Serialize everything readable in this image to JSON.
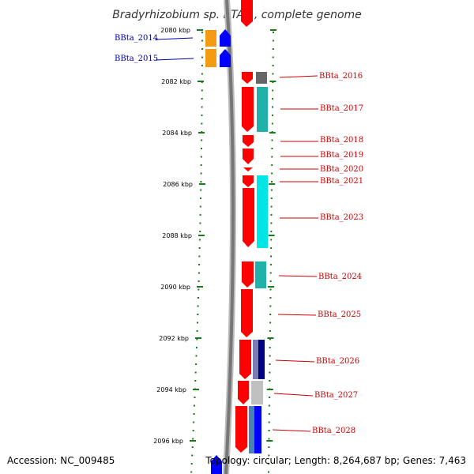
{
  "title": "Bradyrhizobium sp. BTAi1, complete genome",
  "footer": {
    "accession": "Accession: NC_009485",
    "topology": "Topology: circular; Length: 8,264,687 bp; Genes: 7,463"
  },
  "ticks": [
    {
      "kbp": 2080,
      "label": "2080 kbp"
    },
    {
      "kbp": 2082,
      "label": "2082 kbp"
    },
    {
      "kbp": 2084,
      "label": "2084 kbp"
    },
    {
      "kbp": 2086,
      "label": "2086 kbp"
    },
    {
      "kbp": 2088,
      "label": "2088 kbp"
    },
    {
      "kbp": 2090,
      "label": "2090 kbp"
    },
    {
      "kbp": 2092,
      "label": "2092 kbp"
    },
    {
      "kbp": 2094,
      "label": "2094 kbp"
    },
    {
      "kbp": 2096,
      "label": "2096 kbp"
    }
  ],
  "genes": [
    {
      "label": "BBta_2014",
      "strand": "left",
      "color": "#0000aa",
      "tracks": [
        "#f39c12",
        "#0000ff"
      ]
    },
    {
      "label": "BBta_2015",
      "strand": "left",
      "color": "#0000aa",
      "tracks": [
        "#f39c12",
        "#0000ff"
      ]
    },
    {
      "label": "BBta_2016",
      "strand": "right",
      "color": "#cc0000",
      "tracks": [
        "#ff0000",
        "#666666"
      ]
    },
    {
      "label": "BBta_2017",
      "strand": "right",
      "color": "#cc0000",
      "tracks": [
        "#ff0000",
        "#20b2aa"
      ]
    },
    {
      "label": "BBta_2018",
      "strand": "right",
      "color": "#cc0000",
      "tracks": [
        "#ff0000"
      ]
    },
    {
      "label": "BBta_2019",
      "strand": "right",
      "color": "#cc0000",
      "tracks": [
        "#ff0000"
      ]
    },
    {
      "label": "BBta_2020",
      "strand": "right",
      "color": "#cc0000",
      "tracks": [
        "#ff0000"
      ]
    },
    {
      "label": "BBta_2021",
      "strand": "right",
      "color": "#cc0000",
      "tracks": [
        "#ff0000",
        "#00e5e5"
      ]
    },
    {
      "label": "BBta_2023",
      "strand": "right",
      "color": "#cc0000",
      "tracks": [
        "#ff0000",
        "#00e5e5"
      ]
    },
    {
      "label": "BBta_2024",
      "strand": "right",
      "color": "#cc0000",
      "tracks": [
        "#ff0000",
        "#20b2aa"
      ]
    },
    {
      "label": "BBta_2025",
      "strand": "right",
      "color": "#cc0000",
      "tracks": [
        "#ff0000"
      ]
    },
    {
      "label": "BBta_2026",
      "strand": "right",
      "color": "#cc0000",
      "tracks": [
        "#ff0000",
        "#7b7bb5",
        "#000080"
      ]
    },
    {
      "label": "BBta_2027",
      "strand": "right",
      "color": "#cc0000",
      "tracks": [
        "#ff0000",
        "#c0c0c0"
      ]
    },
    {
      "label": "BBta_2028",
      "strand": "right",
      "color": "#cc0000",
      "tracks": [
        "#ff0000",
        "#4682b4",
        "#0000ff"
      ]
    }
  ]
}
